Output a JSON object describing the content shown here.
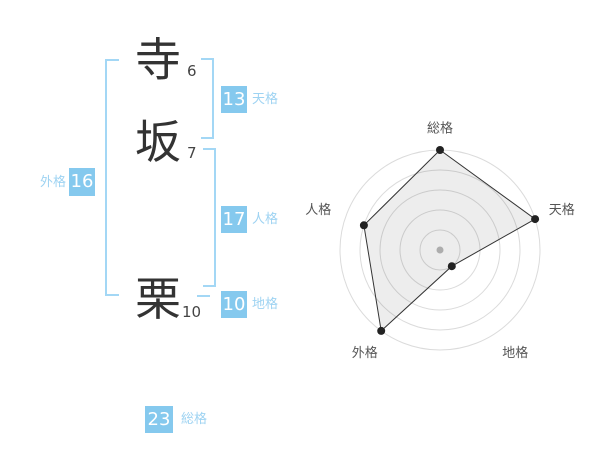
{
  "name_analysis": {
    "characters": [
      {
        "char": "寺",
        "strokes": "6"
      },
      {
        "char": "坂",
        "strokes": "7"
      },
      {
        "char": "栗",
        "strokes": "10"
      }
    ],
    "kaku": {
      "tenkaku": {
        "value": "13",
        "label": "天格"
      },
      "jinkaku": {
        "value": "17",
        "label": "人格"
      },
      "chikaku": {
        "value": "10",
        "label": "地格"
      },
      "gaikaku": {
        "value": "16",
        "label": "外格"
      },
      "soukaku": {
        "value": "23",
        "label": "総格"
      }
    }
  },
  "colors": {
    "accent_blue": "#85c9ee",
    "label_blue": "#9ed3f2",
    "bracket_blue": "#a3d7f5",
    "kanji_text": "#333333",
    "chart_label": "#555555",
    "ring_gray": "#dbdbdb",
    "polygon_line": "#333333",
    "vertex_dot": "#222222",
    "center_dot": "#bbbbbb"
  },
  "chart_data": {
    "type": "radar",
    "axes": [
      "総格",
      "天格",
      "地格",
      "外格",
      "人格"
    ],
    "values": [
      5,
      5,
      1,
      5,
      4
    ],
    "max": 5,
    "rings": 5,
    "start_angle_deg": -90,
    "direction": "clockwise",
    "grid": "circular",
    "legend": false,
    "center_dot": true,
    "fill": "rgba(0,0,0,0.07)"
  }
}
